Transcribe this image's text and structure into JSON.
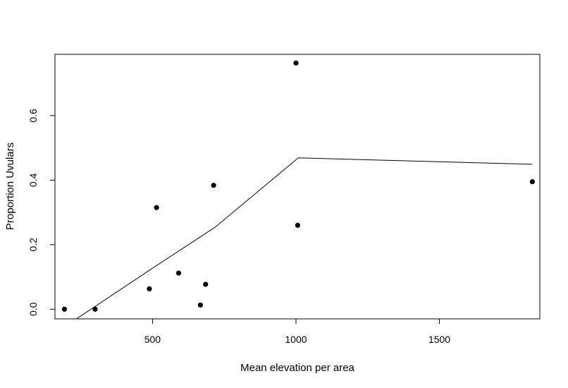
{
  "chart_data": {
    "type": "scatter",
    "title": "",
    "xlabel": "Mean elevation per area",
    "ylabel": "Proportion Uvulars",
    "xlim": [
      160,
      1850
    ],
    "ylim": [
      -0.03,
      0.79
    ],
    "xticks": [
      500,
      1000,
      1500
    ],
    "yticks": [
      0.0,
      0.2,
      0.4,
      0.6
    ],
    "xtick_labels": [
      "500",
      "1000",
      "1500"
    ],
    "ytick_labels": [
      "0.0",
      "0.2",
      "0.4",
      "0.6"
    ],
    "grid": false,
    "legend": "none",
    "points": [
      {
        "x": 193,
        "y": 0.0
      },
      {
        "x": 300,
        "y": 0.0
      },
      {
        "x": 489,
        "y": 0.063
      },
      {
        "x": 514,
        "y": 0.315
      },
      {
        "x": 591,
        "y": 0.112
      },
      {
        "x": 667,
        "y": 0.013
      },
      {
        "x": 685,
        "y": 0.077
      },
      {
        "x": 713,
        "y": 0.384
      },
      {
        "x": 1000,
        "y": 0.763
      },
      {
        "x": 1006,
        "y": 0.26
      },
      {
        "x": 1824,
        "y": 0.395
      }
    ],
    "fit_line": [
      {
        "x": 235,
        "y": -0.03
      },
      {
        "x": 488,
        "y": 0.12
      },
      {
        "x": 718,
        "y": 0.254
      },
      {
        "x": 1008,
        "y": 0.469
      },
      {
        "x": 1824,
        "y": 0.449
      }
    ],
    "colors": {
      "points": "#000000",
      "line": "#000000",
      "frame": "#000000"
    }
  }
}
